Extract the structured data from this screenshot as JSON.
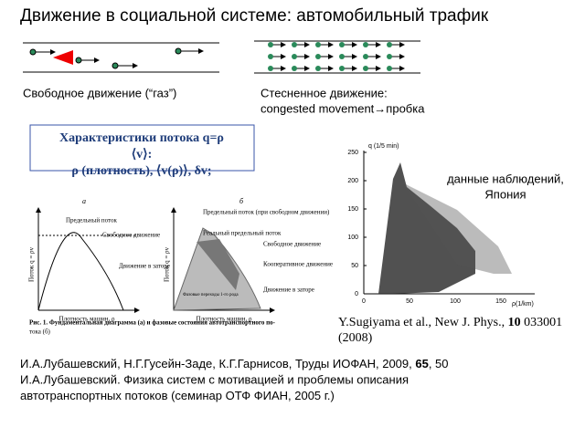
{
  "title": "Движение в социальной системе: автомобильный трафик",
  "free_flow": {
    "label": "Свободное движение  (“газ”)"
  },
  "congested": {
    "lines": [
      "Стесненное движение:",
      "congested movement→пробка"
    ]
  },
  "characteristics_box": {
    "lines": [
      "Характеристики потока q=ρ",
      "⟨v⟩:",
      "ρ (плотность), ⟨v(ρ)⟩, δv;"
    ]
  },
  "diagram_figure": {
    "panel_a": {
      "letter": "а",
      "y_axis": "Поток q = ρv",
      "x_axis": "Плотность машин, ρ",
      "labels": [
        "Предельный поток",
        "Свободное движение",
        "Движение в заторе"
      ]
    },
    "panel_b": {
      "letter": "б",
      "y_axis": "Поток q = ρv",
      "x_axis": "Плотность машин, ρ",
      "labels": [
        "Предельный поток (при свободном движении)",
        "Реальный предельный поток",
        "Свободное движение",
        "Кооперативное движение",
        "Движение в заторе",
        "Фазовые переходы 1-го рода"
      ]
    },
    "caption": [
      "Рис. 1. Фундаментальная диаграмма (а) и фазовые состояния автотранспортного по-",
      "тока (б)"
    ]
  },
  "observation_plot": {
    "y_axis": "q (1/5 min)",
    "x_axis": "ρ(1/km)",
    "yticks": [
      "0",
      "50",
      "100",
      "150",
      "200",
      "250"
    ],
    "xticks": [
      "0",
      "50",
      "100",
      "150"
    ],
    "note": [
      "данные наблюдений,",
      "Япония"
    ],
    "citation": {
      "before": "Y.Sugiyama et al., New J. Phys., ",
      "volume": "10",
      "after": " 033001",
      "year": "(2008)"
    }
  },
  "references": [
    {
      "before": "И.А.Лубашевский, Н.Г.Гусейн-Заде, К.Г.Гарнисов, Труды ИОФАН, 2009, ",
      "volume": "65",
      "after": ", 50"
    },
    {
      "before": "И.А.Лубашевский. Физика систем с мотивацией  и проблемы описания",
      "volume": "",
      "after": ""
    },
    {
      "before": "автотранспортных потоков (семинар ОТФ ФИАН, 2005 г.)",
      "volume": "",
      "after": ""
    }
  ]
}
